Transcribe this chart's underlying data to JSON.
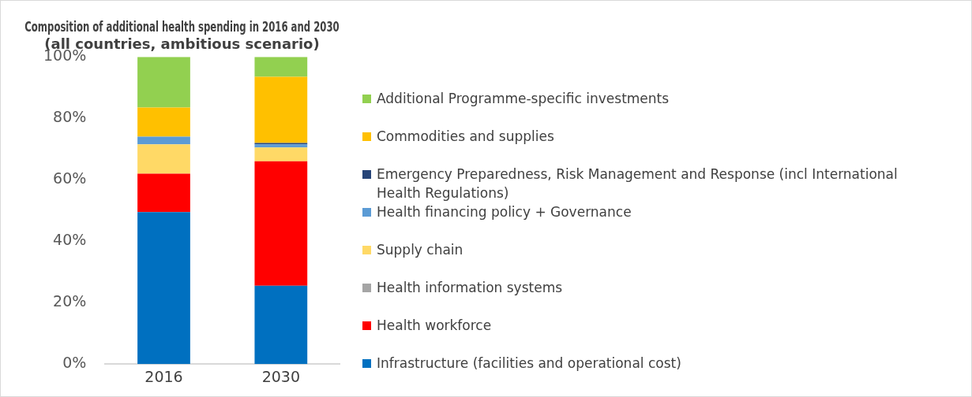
{
  "chart_data": {
    "type": "bar",
    "title": "Composition of additional health spending in 2016 and 2030",
    "subtitle": "(all countries, ambitious scenario)",
    "categories": [
      "2016",
      "2030"
    ],
    "stacked": true,
    "legend": "right",
    "grid": false,
    "ylim": [
      0,
      100
    ],
    "yticks": [
      {
        "value": 0,
        "label": "0%"
      },
      {
        "value": 20,
        "label": "20%"
      },
      {
        "value": 40,
        "label": "40%"
      },
      {
        "value": 60,
        "label": "60%"
      },
      {
        "value": 80,
        "label": "80%"
      },
      {
        "value": 100,
        "label": "100%"
      }
    ],
    "series": [
      {
        "name": "Infrastructure (facilities and operational cost)",
        "color": "#0070c0",
        "values": [
          49.5,
          25.5
        ]
      },
      {
        "name": "Health workforce",
        "color": "#ff0000",
        "values": [
          12.5,
          40.5
        ]
      },
      {
        "name": "Health information systems",
        "color": "#a5a5a5",
        "values": [
          0,
          0
        ]
      },
      {
        "name": "Supply chain",
        "color": "#ffd966",
        "values": [
          9.5,
          4.5
        ]
      },
      {
        "name": "Health financing policy + Governance",
        "color": "#5b9bd5",
        "values": [
          2.5,
          1
        ]
      },
      {
        "name": "Emergency Preparedness, Risk Management and Response (incl International Health Regulations)",
        "color": "#264478",
        "values": [
          0,
          0.5
        ]
      },
      {
        "name": "Commodities and supplies",
        "color": "#ffc000",
        "values": [
          9.5,
          21.5
        ]
      },
      {
        "name": "Additional Programme-specific investments",
        "color": "#92d050",
        "values": [
          16.5,
          6.5
        ]
      }
    ]
  }
}
